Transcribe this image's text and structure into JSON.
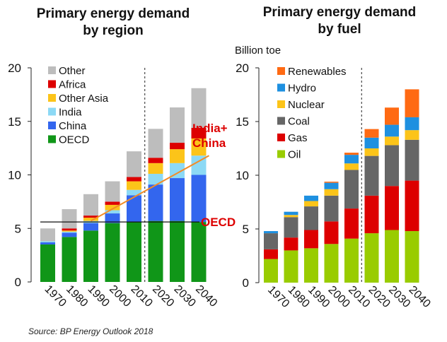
{
  "chart_data": [
    {
      "type": "bar",
      "stacked": true,
      "title": "Primary energy demand by region",
      "title_lines": [
        "Primary energy demand",
        "by region"
      ],
      "ylabel": "",
      "ylim": [
        0,
        20
      ],
      "yticks": [
        0,
        5,
        10,
        15,
        20
      ],
      "categories": [
        "1970",
        "1980",
        "1990",
        "2000",
        "2010",
        "2020",
        "2030",
        "2040"
      ],
      "projection_start": "2010",
      "series": [
        {
          "name": "OECD",
          "color": "#109618",
          "values": [
            3.5,
            4.2,
            4.8,
            5.5,
            5.6,
            5.7,
            5.7,
            5.6
          ]
        },
        {
          "name": "China",
          "color": "#3366ee",
          "values": [
            0.2,
            0.4,
            0.7,
            0.9,
            2.5,
            3.4,
            4.0,
            4.4
          ]
        },
        {
          "name": "India",
          "color": "#8cd9f5",
          "values": [
            0.1,
            0.1,
            0.2,
            0.3,
            0.5,
            1.0,
            1.4,
            1.8
          ]
        },
        {
          "name": "Other Asia",
          "color": "#fcc419",
          "values": [
            0.0,
            0.1,
            0.3,
            0.5,
            0.8,
            1.0,
            1.3,
            1.6
          ]
        },
        {
          "name": "Africa",
          "color": "#dd0000",
          "values": [
            0.0,
            0.2,
            0.2,
            0.3,
            0.4,
            0.5,
            0.6,
            1.0
          ]
        },
        {
          "name": "Other",
          "color": "#bdbdbd",
          "values": [
            1.2,
            1.8,
            2.0,
            1.9,
            2.4,
            2.7,
            3.3,
            3.7
          ]
        }
      ],
      "legend_order": [
        "Other",
        "Africa",
        "Other Asia",
        "India",
        "China",
        "OECD"
      ],
      "annotations": [
        {
          "text": "India+\nChina",
          "color": "#dd0000"
        },
        {
          "text": "OECD",
          "color": "#dd0000"
        }
      ]
    },
    {
      "type": "bar",
      "stacked": true,
      "title": "Primary energy demand by fuel",
      "title_lines": [
        "Primary energy demand",
        "by fuel"
      ],
      "ylabel": "Billion toe",
      "ylim": [
        0,
        20
      ],
      "yticks": [
        0,
        5,
        10,
        15,
        20
      ],
      "categories": [
        "1970",
        "1980",
        "1990",
        "2000",
        "2010",
        "2020",
        "2030",
        "2040"
      ],
      "projection_start": "2010",
      "series": [
        {
          "name": "Oil",
          "color": "#99cc00",
          "values": [
            2.2,
            3.0,
            3.2,
            3.6,
            4.1,
            4.6,
            4.9,
            4.8
          ]
        },
        {
          "name": "Gas",
          "color": "#dd0000",
          "values": [
            0.9,
            1.2,
            1.7,
            2.1,
            2.8,
            3.5,
            4.1,
            4.7
          ]
        },
        {
          "name": "Coal",
          "color": "#666666",
          "values": [
            1.5,
            1.9,
            2.2,
            2.4,
            3.6,
            3.7,
            3.8,
            3.8
          ]
        },
        {
          "name": "Nuclear",
          "color": "#fcc419",
          "values": [
            0.0,
            0.2,
            0.5,
            0.6,
            0.6,
            0.7,
            0.8,
            0.9
          ]
        },
        {
          "name": "Hydro",
          "color": "#1e90e0",
          "values": [
            0.2,
            0.3,
            0.5,
            0.6,
            0.8,
            1.0,
            1.1,
            1.2
          ]
        },
        {
          "name": "Renewables",
          "color": "#ff6a13",
          "values": [
            0.0,
            0.0,
            0.0,
            0.1,
            0.2,
            0.8,
            1.6,
            2.6
          ]
        }
      ],
      "legend_order": [
        "Renewables",
        "Hydro",
        "Nuclear",
        "Coal",
        "Gas",
        "Oil"
      ]
    }
  ],
  "source": "Source: BP Energy Outlook 2018"
}
